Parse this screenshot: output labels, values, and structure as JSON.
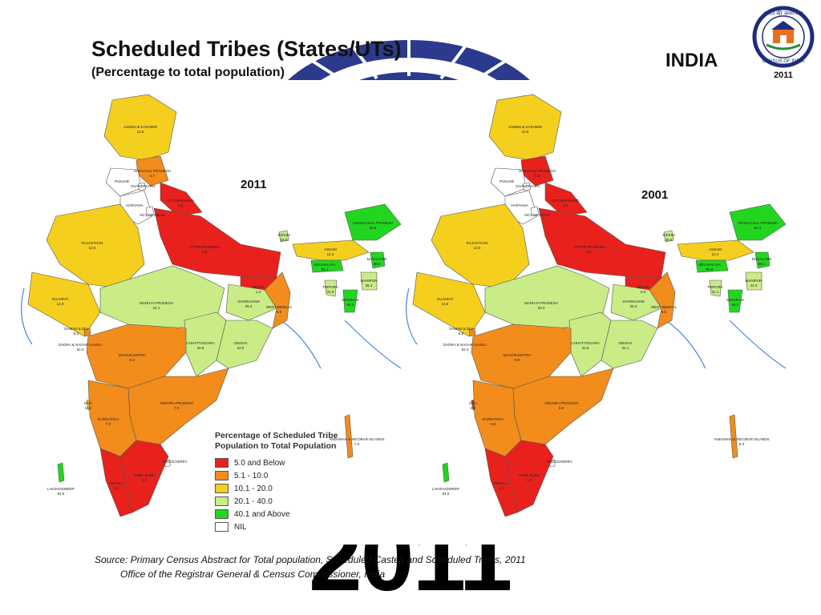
{
  "slide": {
    "title": "Scheduled Tribes (States/UTs)",
    "subtitle": "(Percentage to total population)",
    "country": "INDIA",
    "background_year": "2011",
    "logo": {
      "arc_text": "भारत की जनगणना",
      "bottom_text": "CENSUS OF INDIA",
      "year": "2011"
    }
  },
  "maps": [
    {
      "year": "2011",
      "labels": [
        {
          "name": "JAMMU & KASHMIR",
          "value": "11.9"
        },
        {
          "name": "HIMACHAL PRADESH",
          "value": "5.7"
        },
        {
          "name": "PUNJAB",
          "value": ""
        },
        {
          "name": "CHANDIGARH",
          "value": ""
        },
        {
          "name": "UTTARAKHAND",
          "value": "2.9"
        },
        {
          "name": "HARYANA",
          "value": ""
        },
        {
          "name": "NCT OF DELHI",
          "value": ""
        },
        {
          "name": "RAJASTHAN",
          "value": "13.5"
        },
        {
          "name": "UTTAR PRADESH",
          "value": "0.6"
        },
        {
          "name": "SIKKIM",
          "value": "33.8"
        },
        {
          "name": "ARUNACHAL PRADESH",
          "value": "68.8"
        },
        {
          "name": "ASSAM",
          "value": "12.4"
        },
        {
          "name": "NAGALAND",
          "value": "86.5"
        },
        {
          "name": "MEGHALAYA",
          "value": "86.1"
        },
        {
          "name": "MANIPUR",
          "value": "35.1"
        },
        {
          "name": "BIHAR",
          "value": "1.3"
        },
        {
          "name": "TRIPURA",
          "value": "31.8"
        },
        {
          "name": "MIZORAM",
          "value": "94.4"
        },
        {
          "name": "GUJARAT",
          "value": "14.8"
        },
        {
          "name": "MADHYA PRADESH",
          "value": "21.1"
        },
        {
          "name": "JHARKHAND",
          "value": "26.2"
        },
        {
          "name": "WEST BENGAL",
          "value": "5.8"
        },
        {
          "name": "CHHATTISGARH",
          "value": "30.6"
        },
        {
          "name": "ODISHA",
          "value": "22.8"
        },
        {
          "name": "DAMAN & DIU",
          "value": "6.3"
        },
        {
          "name": "DADRA & NAGAR HAVELI",
          "value": "52.0"
        },
        {
          "name": "MAHARASHTRA",
          "value": "9.4"
        },
        {
          "name": "ANDHRA PRADESH",
          "value": "7.0"
        },
        {
          "name": "GOA",
          "value": "10.2"
        },
        {
          "name": "KARNATAKA",
          "value": "7.0"
        },
        {
          "name": "PUDUCHERRY",
          "value": ""
        },
        {
          "name": "TAMIL NADU",
          "value": "1.1"
        },
        {
          "name": "KERALA",
          "value": "1.5"
        },
        {
          "name": "LAKSHADWEEP",
          "value": "94.8"
        },
        {
          "name": "ANDAMAN & NICOBAR ISLANDS",
          "value": "7.5"
        }
      ]
    },
    {
      "year": "2001",
      "labels": [
        {
          "name": "JAMMU & KASHMIR",
          "value": "10.9"
        },
        {
          "name": "HIMACHAL PRADESH",
          "value": "4.0"
        },
        {
          "name": "PUNJAB",
          "value": ""
        },
        {
          "name": "CHANDIGARH",
          "value": ""
        },
        {
          "name": "UTTARAKHAND",
          "value": "3.0"
        },
        {
          "name": "HARYANA",
          "value": ""
        },
        {
          "name": "NCT OF DELHI",
          "value": ""
        },
        {
          "name": "RAJASTHAN",
          "value": "12.6"
        },
        {
          "name": "UTTAR PRADESH",
          "value": "0.1"
        },
        {
          "name": "SIKKIM",
          "value": "20.6"
        },
        {
          "name": "ARUNACHAL PRADESH",
          "value": "64.2"
        },
        {
          "name": "ASSAM",
          "value": "12.4"
        },
        {
          "name": "NAGALAND",
          "value": "89.1"
        },
        {
          "name": "MEGHALAYA",
          "value": "85.9"
        },
        {
          "name": "MANIPUR",
          "value": "34.2"
        },
        {
          "name": "BIHAR",
          "value": "0.9"
        },
        {
          "name": "TRIPURA",
          "value": "31.1"
        },
        {
          "name": "MIZORAM",
          "value": "94.5"
        },
        {
          "name": "GUJARAT",
          "value": "14.8"
        },
        {
          "name": "MADHYA PRADESH",
          "value": "20.3"
        },
        {
          "name": "JHARKHAND",
          "value": "26.3"
        },
        {
          "name": "WEST BENGAL",
          "value": "5.5"
        },
        {
          "name": "CHHATTISGARH",
          "value": "31.8"
        },
        {
          "name": "ODISHA",
          "value": "22.1"
        },
        {
          "name": "DAMAN & DIU",
          "value": "8.8"
        },
        {
          "name": "DADRA & NAGAR HAVELI",
          "value": "62.2"
        },
        {
          "name": "MAHARASHTRA",
          "value": "8.9"
        },
        {
          "name": "ANDHRA PRADESH",
          "value": "6.6"
        },
        {
          "name": "GOA",
          "value": "0.0"
        },
        {
          "name": "KARNATAKA",
          "value": "6.6"
        },
        {
          "name": "PUDUCHERRY",
          "value": ""
        },
        {
          "name": "TAMIL NADU",
          "value": "1.0"
        },
        {
          "name": "KERALA",
          "value": "1.1"
        },
        {
          "name": "LAKSHADWEEP",
          "value": "94.5"
        },
        {
          "name": "ANDAMAN & NICOBAR ISLANDS",
          "value": "8.3"
        }
      ]
    }
  ],
  "legend": {
    "title": "Percentage of Scheduled Tribe Population to Total Population",
    "items": [
      {
        "label": "5.0 and Below",
        "color": "#e8211c"
      },
      {
        "label": "5.1 - 10.0",
        "color": "#f28c1b"
      },
      {
        "label": "10.1 - 20.0",
        "color": "#f4cf1e"
      },
      {
        "label": "20.1 - 40.0",
        "color": "#c9ec86"
      },
      {
        "label": "40.1 and Above",
        "color": "#22d61f"
      },
      {
        "label": "NIL",
        "color": "#ffffff"
      }
    ]
  },
  "colors": {
    "sea_line": "#4a86d8",
    "border": "#555555"
  },
  "footer": {
    "line1": "Source: Primary Census Abstract for Total population, Scheduled Castes and Scheduled Tribes, 2011",
    "line2": "Office of the Registrar General & Census Commissioner, India"
  }
}
